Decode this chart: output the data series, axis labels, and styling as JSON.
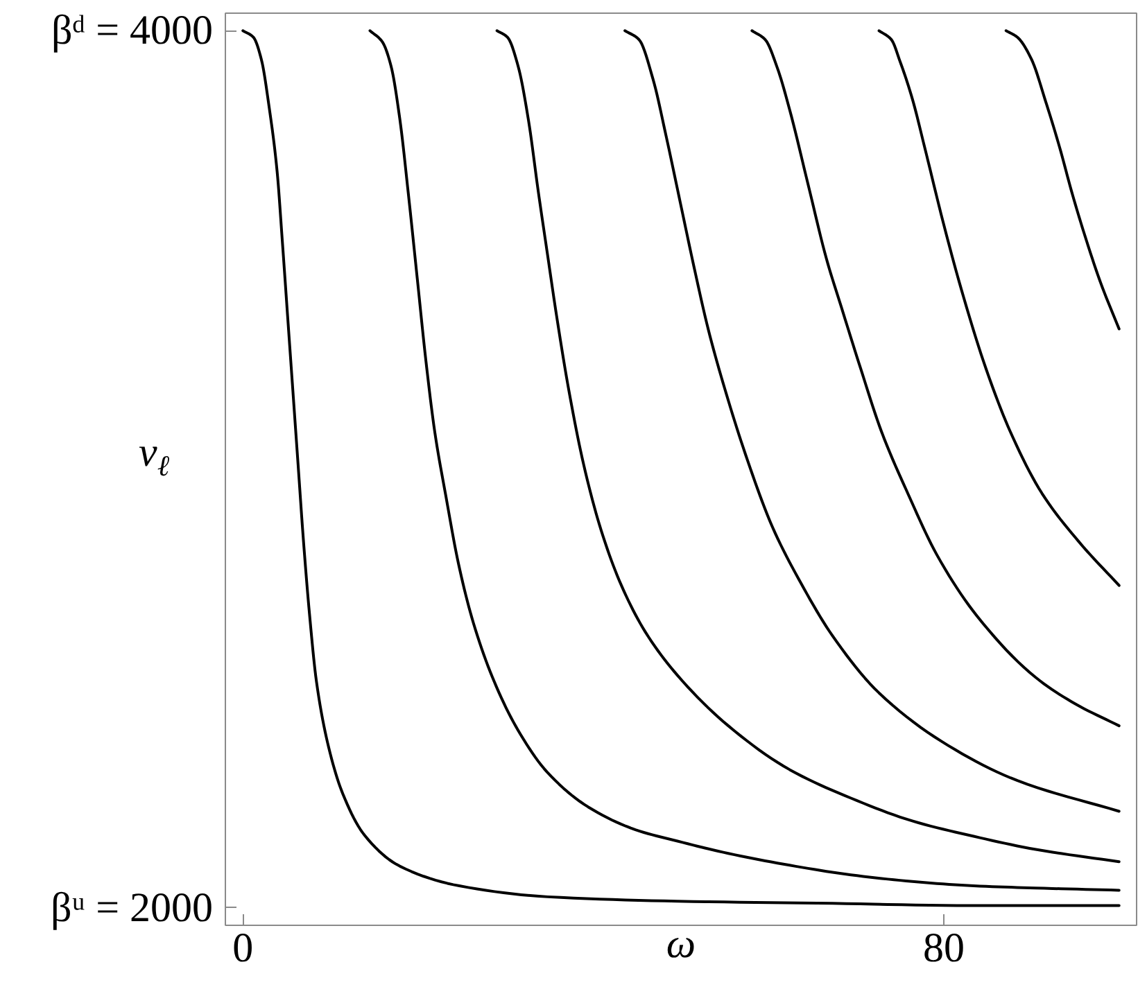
{
  "chart_data": {
    "type": "line",
    "xlabel": "ω",
    "ylabel": "v$_{ℓ}$",
    "xlim": [
      -2,
      102
    ],
    "ylim": [
      1960,
      4040
    ],
    "xticks": [
      0,
      80
    ],
    "yticks": [
      {
        "value": 2000,
        "label": "βᵘ = 2000"
      },
      {
        "value": 4000,
        "label": "βᵈ = 4000"
      }
    ],
    "grid": false,
    "line_style": "solid",
    "series": [
      {
        "color": "#000000",
        "x": [
          0,
          1.2,
          2.1,
          3.0,
          3.9,
          4.5,
          5.1,
          5.7,
          6.3,
          6.9,
          7.6,
          8.4,
          9.8,
          11.4,
          13.9,
          17.9,
          24.7,
          34.8,
          49.6,
          67.3,
          83.1,
          100
        ],
        "values": [
          4000,
          3985,
          3935,
          3825,
          3680,
          3520,
          3350,
          3180,
          3010,
          2840,
          2670,
          2515,
          2365,
          2260,
          2165,
          2095,
          2050,
          2025,
          2015,
          2010,
          2005,
          2005
        ]
      },
      {
        "color": "#000000",
        "x": [
          14.5,
          15.9,
          16.9,
          17.9,
          18.9,
          19.9,
          20.9,
          21.9,
          23.2,
          24.6,
          26.3,
          28.7,
          31.4,
          34.7,
          39.4,
          44.8,
          49.6,
          55.4,
          62.4,
          69.4,
          76.4,
          83.4,
          90.5,
          100
        ],
        "values": [
          4000,
          3975,
          3920,
          3800,
          3625,
          3435,
          3245,
          3085,
          2935,
          2785,
          2650,
          2515,
          2405,
          2310,
          2230,
          2178,
          2152,
          2124,
          2097,
          2075,
          2060,
          2050,
          2045,
          2040
        ]
      },
      {
        "color": "#000000",
        "x": [
          29.0,
          30.2,
          31.4,
          32.6,
          33.7,
          34.8,
          35.8,
          37.2,
          38.9,
          40.9,
          43.2,
          45.9,
          49.6,
          55.4,
          62.4,
          69.4,
          76.4,
          83.4,
          90.5,
          100
        ],
        "values": [
          4000,
          3985,
          3920,
          3795,
          3635,
          3485,
          3350,
          3180,
          3010,
          2860,
          2735,
          2630,
          2530,
          2415,
          2315,
          2250,
          2198,
          2163,
          2133,
          2105
        ]
      },
      {
        "color": "#000000",
        "x": [
          43.6,
          45.2,
          46.8,
          48.3,
          49.9,
          51.5,
          53.1,
          55.2,
          57.6,
          60.4,
          63.7,
          67.3,
          72.6,
          80.5,
          88.4,
          100
        ],
        "values": [
          4000,
          3980,
          3890,
          3760,
          3610,
          3460,
          3320,
          3170,
          3020,
          2870,
          2740,
          2620,
          2490,
          2370,
          2290,
          2220
        ]
      },
      {
        "color": "#000000",
        "x": [
          58.1,
          59.6,
          61.0,
          62.4,
          64.5,
          66.6,
          68.3,
          70.5,
          72.9,
          76.0,
          79.2,
          83.8,
          90.5,
          95.0,
          100
        ],
        "values": [
          4000,
          3980,
          3915,
          3820,
          3650,
          3480,
          3370,
          3230,
          3085,
          2940,
          2805,
          2665,
          2525,
          2465,
          2415
        ]
      },
      {
        "color": "#000000",
        "x": [
          72.6,
          74.0,
          75.0,
          76.4,
          77.8,
          79.9,
          82.0,
          84.8,
          87.6,
          91.2,
          95.4,
          100
        ],
        "values": [
          4000,
          3980,
          3930,
          3845,
          3735,
          3565,
          3410,
          3230,
          3085,
          2945,
          2835,
          2735
        ]
      },
      {
        "color": "#000000",
        "x": [
          87.1,
          88.4,
          90.0,
          91.6,
          93.2,
          94.7,
          96.3,
          97.9,
          100
        ],
        "values": [
          4000,
          3985,
          3935,
          3840,
          3735,
          3625,
          3520,
          3425,
          3320
        ]
      }
    ]
  }
}
